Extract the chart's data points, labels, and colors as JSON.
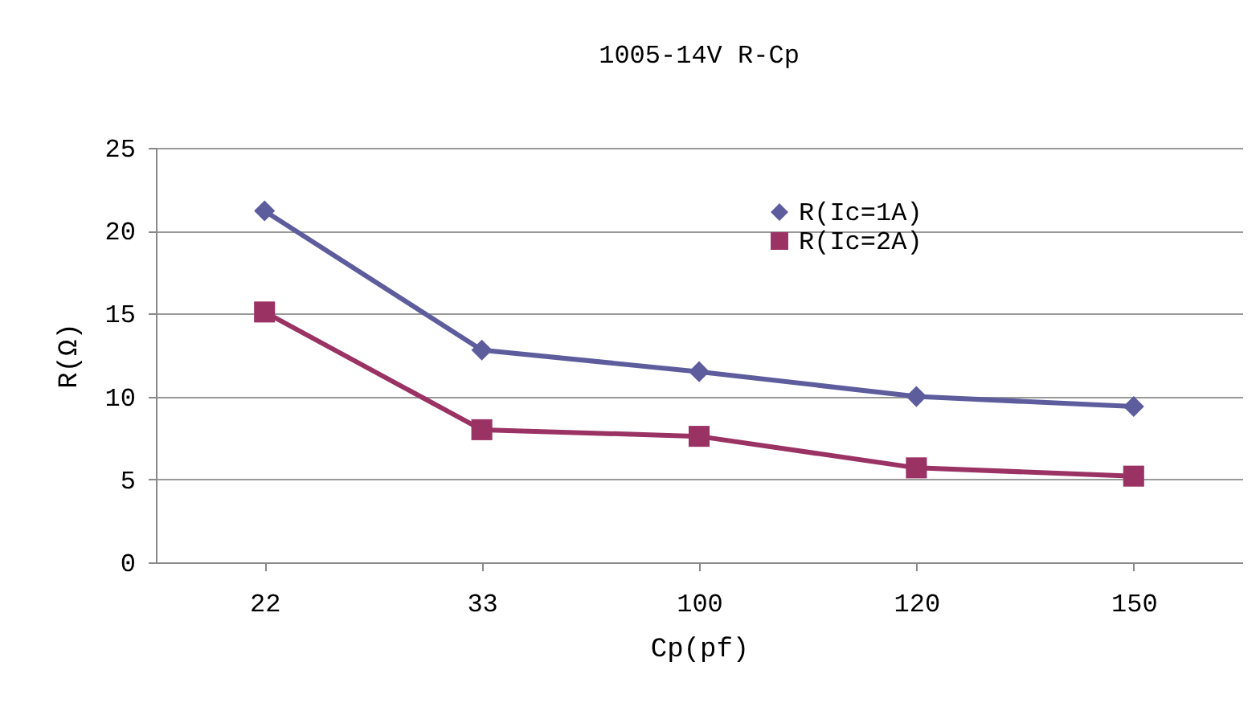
{
  "chart_data": {
    "type": "line",
    "title": "1005-14V R-Cp",
    "xlabel": "Cp(pf)",
    "ylabel": "R(Ω)",
    "categories": [
      "22",
      "33",
      "100",
      "120",
      "150"
    ],
    "series": [
      {
        "name": "R(Ic=1A)",
        "color": "#5d5d9e",
        "marker": "diamond",
        "values": [
          21.2,
          12.8,
          11.5,
          10.0,
          9.4
        ]
      },
      {
        "name": "R(Ic=2A)",
        "color": "#9b3264",
        "marker": "square",
        "values": [
          15.1,
          8.0,
          7.6,
          5.7,
          5.2
        ]
      }
    ],
    "ylim": [
      0,
      25
    ],
    "yticks": [
      0,
      5,
      10,
      15,
      20,
      25
    ],
    "grid": "y",
    "legend": "top right"
  }
}
